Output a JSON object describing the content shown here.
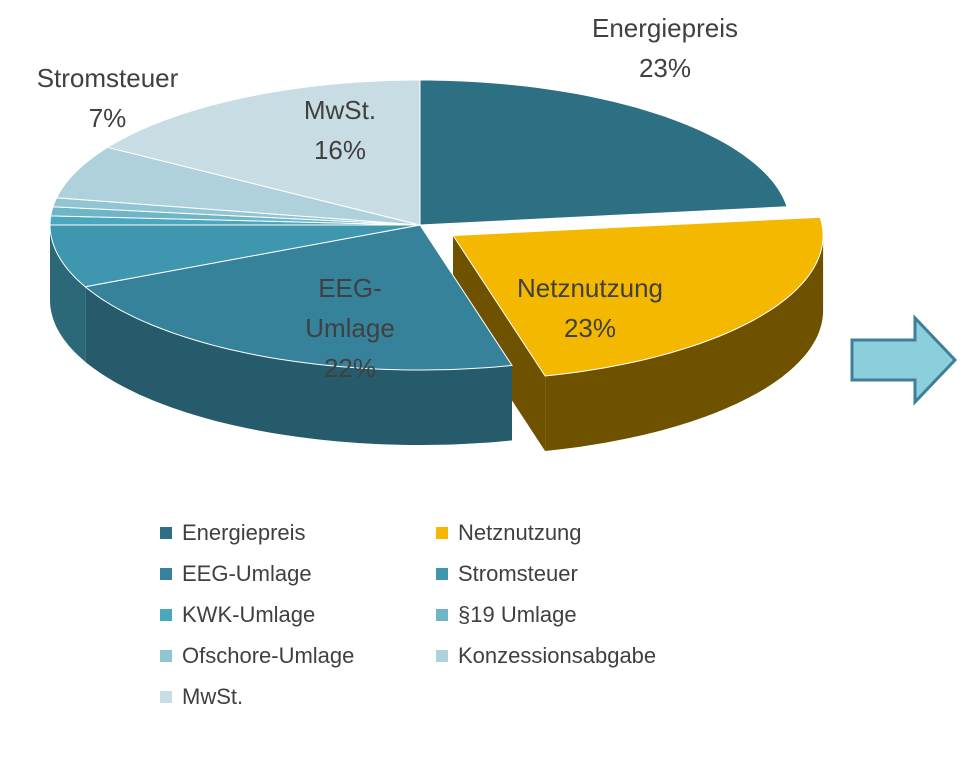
{
  "chart_data": {
    "type": "pie3d",
    "categories": [
      "Energiepreis",
      "Netznutzung",
      "EEG-Umlage",
      "Stromsteuer",
      "KWK-Umlage",
      "§19 Umlage",
      "Ofschore-Umlage",
      "Konzessionsabgabe",
      "MwSt."
    ],
    "values": [
      23,
      23,
      22,
      7,
      1,
      1,
      1,
      6,
      16
    ],
    "value_labels": [
      "23%",
      "23%",
      "22%",
      "7%",
      null,
      null,
      null,
      null,
      "16%"
    ],
    "colors": [
      "#2e7083",
      "#f5b800",
      "#36829a",
      "#3e97ae",
      "#4aa7bf",
      "#6db5c7",
      "#92c5d3",
      "#afd1db",
      "#c8dce4"
    ],
    "exploded": [
      1
    ]
  }
}
